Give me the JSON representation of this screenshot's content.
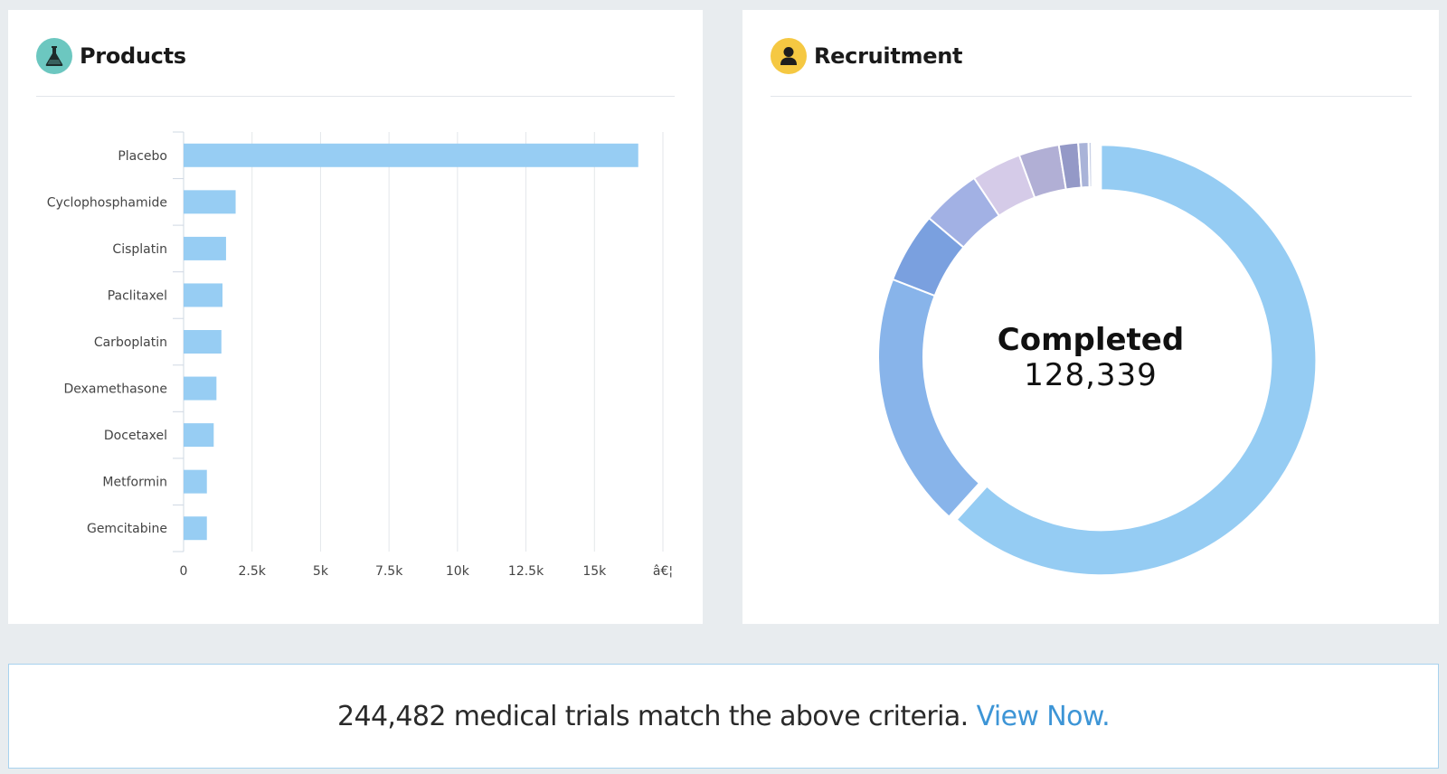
{
  "products": {
    "title": "Products",
    "icon": "flask-icon",
    "chart_data": {
      "type": "bar",
      "orientation": "horizontal",
      "categories": [
        "Placebo",
        "Cyclophosphamide",
        "Cisplatin",
        "Paclitaxel",
        "Carboplatin",
        "Dexamethasone",
        "Docetaxel",
        "Metformin",
        "Gemcitabine"
      ],
      "values": [
        16600,
        1900,
        1550,
        1420,
        1380,
        1200,
        1100,
        850,
        850
      ],
      "x_ticks": [
        "0",
        "2.5k",
        "5k",
        "7.5k",
        "10k",
        "12.5k",
        "15k",
        "â€¦"
      ],
      "x_tick_values": [
        0,
        2500,
        5000,
        7500,
        10000,
        12500,
        15000,
        17500
      ],
      "xlim": [
        0,
        17500
      ],
      "grid": "vertical",
      "bar_color": "#97cdf3"
    }
  },
  "recruitment": {
    "title": "Recruitment",
    "icon": "person-icon",
    "center_title": "Completed",
    "center_value": "128,339",
    "chart_data": {
      "type": "pie",
      "variant": "donut",
      "values": [
        128339,
        39900,
        11000,
        9300,
        7800,
        6300,
        3000,
        1600,
        500,
        250
      ],
      "highlighted_slice": 0,
      "colors": [
        "#95ccf3",
        "#88b4ea",
        "#7aa0df",
        "#a2b1e4",
        "#d5cbe8",
        "#b1afd5",
        "#9499c7",
        "#a9b3d8",
        "#c9d1e6",
        "#8faad6"
      ]
    }
  },
  "banner": {
    "text": "244,482 medical trials match the above criteria.",
    "link": "View Now."
  }
}
